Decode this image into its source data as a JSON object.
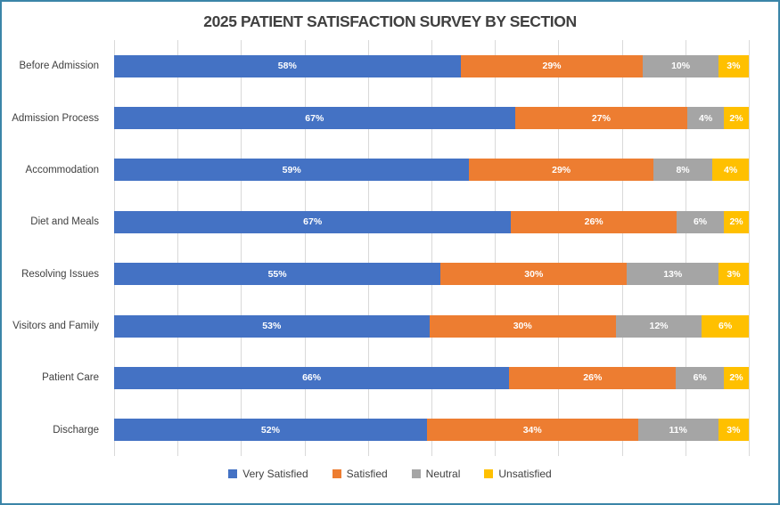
{
  "title": "2025 PATIENT SATISFACTION SURVEY BY SECTION",
  "colors": {
    "very_satisfied": "#4472C4",
    "satisfied": "#ED7D31",
    "neutral": "#A5A5A5",
    "unsatisfied": "#FFC000",
    "gridline": "#D9D9D9",
    "frame_border": "#3B85A8",
    "text": "#404040",
    "data_label": "#FFFFFF"
  },
  "legend": {
    "position": "bottom",
    "items": [
      "Very Satisfied",
      "Satisfied",
      "Neutral",
      "Unsatisfied"
    ]
  },
  "chart_data": {
    "type": "bar",
    "orientation": "horizontal",
    "stacked": true,
    "percent_stacked": true,
    "title": "2025 PATIENT SATISFACTION SURVEY BY SECTION",
    "xlabel": "",
    "ylabel": "",
    "xlim": [
      0,
      100
    ],
    "grid": true,
    "gridline_step_percent": 10,
    "data_labels": true,
    "value_suffix": "%",
    "legend_position": "bottom",
    "categories": [
      "Before Admission",
      "Admission Process",
      "Accommodation",
      "Diet and Meals",
      "Resolving Issues",
      "Visitors and Family",
      "Patient Care",
      "Discharge"
    ],
    "series": [
      {
        "name": "Very Satisfied",
        "color": "#4472C4",
        "values": [
          58,
          67,
          59,
          67,
          55,
          53,
          66,
          52
        ]
      },
      {
        "name": "Satisfied",
        "color": "#ED7D31",
        "values": [
          29,
          27,
          29,
          26,
          30,
          30,
          26,
          34
        ]
      },
      {
        "name": "Neutral",
        "color": "#A5A5A5",
        "values": [
          10,
          4,
          8,
          6,
          13,
          12,
          6,
          11
        ]
      },
      {
        "name": "Unsatisfied",
        "color": "#FFC000",
        "values": [
          3,
          2,
          4,
          2,
          3,
          6,
          2,
          3
        ]
      }
    ]
  }
}
